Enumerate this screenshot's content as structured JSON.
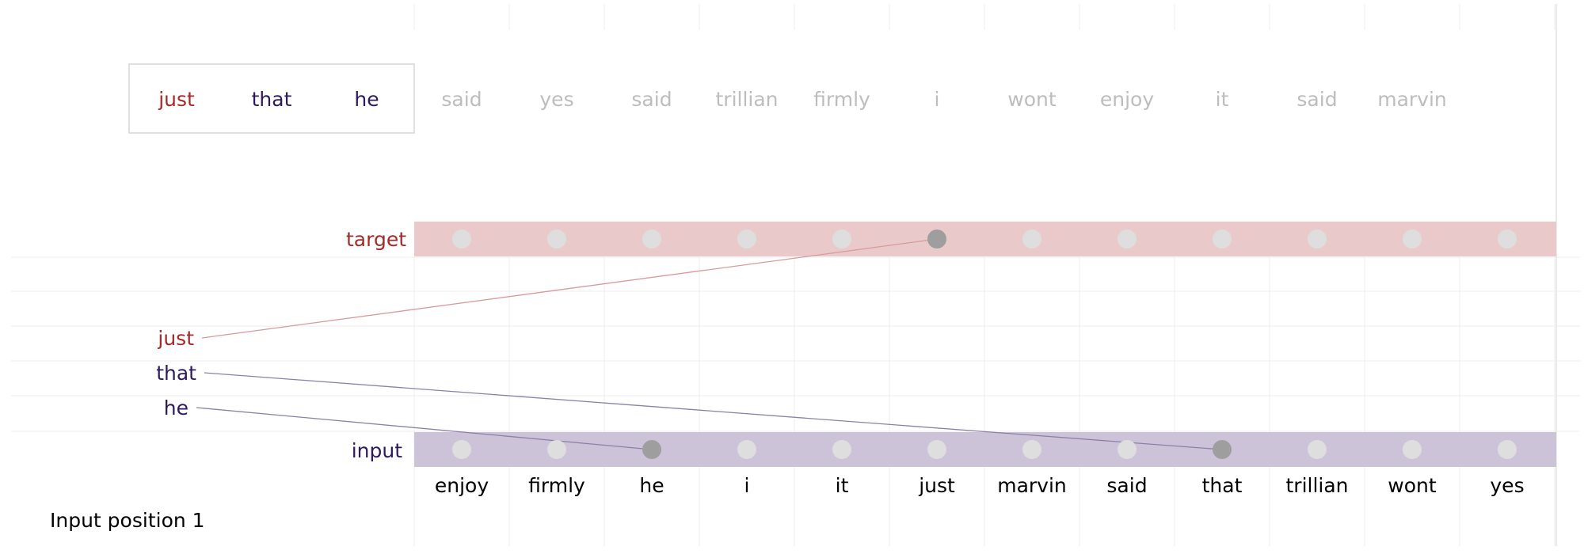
{
  "sequence": {
    "highlighted": [
      "just",
      "that",
      "he"
    ],
    "rest": [
      "said",
      "yes",
      "said",
      "trillian",
      "firmly",
      "i",
      "wont",
      "enjoy",
      "it",
      "said",
      "marvin"
    ]
  },
  "rows": {
    "target_label": "target",
    "input_label": "input"
  },
  "vocabulary": [
    "enjoy",
    "firmly",
    "he",
    "i",
    "it",
    "just",
    "marvin",
    "said",
    "that",
    "trillian",
    "wont",
    "yes"
  ],
  "stack": [
    {
      "word": "just",
      "connects_to": "target",
      "index": 5
    },
    {
      "word": "that",
      "connects_to": "input",
      "index": 8
    },
    {
      "word": "he",
      "connects_to": "input",
      "index": 2
    }
  ],
  "caption": "Input position 1",
  "colors": {
    "target_band": "#e9c9c9",
    "input_band": "#cdc3d8",
    "target_text": "#a42a2a",
    "input_text": "#2e1a5c",
    "active_dot": "#9e9e9e",
    "inactive_dot": "#dedede",
    "faded_word": "#bdbdbd",
    "grid": "#ececec",
    "target_line": "#d99a9a",
    "input_line": "#8c80a6"
  }
}
